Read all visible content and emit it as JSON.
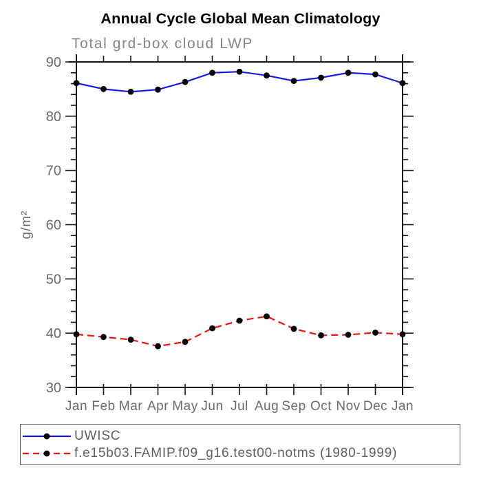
{
  "title": "Annual Cycle Global Mean Climatology",
  "subtitle": "Total grd-box cloud LWP",
  "chart_data": {
    "type": "line",
    "title": "Annual Cycle Global Mean Climatology",
    "subtitle": "Total grd-box cloud LWP",
    "categories": [
      "Jan",
      "Feb",
      "Mar",
      "Apr",
      "May",
      "Jun",
      "Jul",
      "Aug",
      "Sep",
      "Oct",
      "Nov",
      "Dec",
      "Jan"
    ],
    "ylabel": "g/m²",
    "ylim": [
      30,
      90
    ],
    "y_major_step": 10,
    "y_minor_step": 2,
    "grid": false,
    "legend_position": "bottom",
    "series": [
      {
        "name": "UWISC",
        "style": "solid",
        "color": "#1a1ae6",
        "marker": "circle",
        "marker_color": "#000000",
        "values": [
          86.1,
          85.0,
          84.5,
          84.9,
          86.3,
          88.0,
          88.2,
          87.5,
          86.5,
          87.1,
          88.0,
          87.7,
          86.1
        ]
      },
      {
        "name": "f.e15b03.FAMIP.f09_g16.test00-notms (1980-1999)",
        "style": "dashed",
        "color": "#ee1212",
        "marker": "circle",
        "marker_color": "#000000",
        "values": [
          39.8,
          39.3,
          38.8,
          37.6,
          38.4,
          40.9,
          42.3,
          43.1,
          40.8,
          39.6,
          39.7,
          40.1,
          39.8
        ]
      }
    ]
  },
  "legend": {
    "entries": [
      {
        "label": "UWISC"
      },
      {
        "label": "f.e15b03.FAMIP.f09_g16.test00-notms (1980-1999)"
      }
    ]
  },
  "colors": {
    "axis": "#141414",
    "tick_label": "#6a6a6a",
    "subtitle": "#858585",
    "legend_text": "#5f5f5f",
    "series_blue": "#1a1ae6",
    "series_red": "#ee1212",
    "marker": "#000000"
  }
}
